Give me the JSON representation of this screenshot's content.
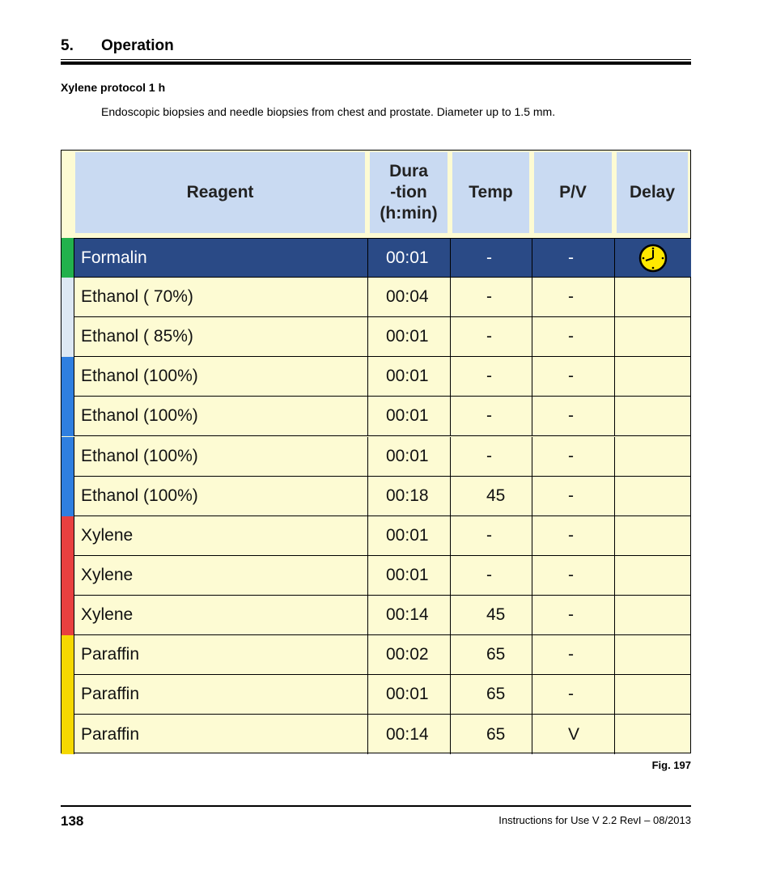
{
  "header": {
    "section_number": "5.",
    "section_title": "Operation"
  },
  "heading": "Xylene protocol 1 h",
  "description": "Endoscopic biopsies and needle biopsies from chest and prostate. Diameter up to 1.5 mm.",
  "table": {
    "columns": [
      "Reagent",
      "Dura\n-tion\n(h:min)",
      "Temp",
      "P/V",
      "Delay"
    ],
    "rows": [
      [
        "Formalin",
        "00:01",
        "-",
        "-"
      ],
      [
        "Ethanol ( 70%)",
        "00:04",
        "-",
        "-"
      ],
      [
        "Ethanol ( 85%)",
        "00:01",
        "-",
        "-"
      ],
      [
        "Ethanol (100%)",
        "00:01",
        "-",
        "-"
      ],
      [
        "Ethanol (100%)",
        "00:01",
        "-",
        "-"
      ],
      [
        "Ethanol (100%)",
        "00:01",
        "-",
        "-"
      ],
      [
        "Ethanol (100%)",
        "00:18",
        "45",
        "-"
      ],
      [
        "Xylene",
        "00:01",
        "-",
        "-"
      ],
      [
        "Xylene",
        "00:01",
        "-",
        "-"
      ],
      [
        "Xylene",
        "00:14",
        "45",
        "-"
      ],
      [
        "Paraffin",
        "00:02",
        "65",
        "-"
      ],
      [
        "Paraffin",
        "00:01",
        "65",
        "-"
      ],
      [
        "Paraffin",
        "00:14",
        "65",
        "V"
      ]
    ],
    "stripe_colors": [
      "#22b14c",
      "#dde8f4",
      "#dde8f4",
      "#2f7fe0",
      "#2f7fe0",
      "#2f7fe0",
      "#2f7fe0",
      "#e8403f",
      "#e8403f",
      "#e8403f",
      "#f5d800",
      "#f5d800",
      "#f5d800"
    ]
  },
  "figure_label": "Fig. 197",
  "footer": {
    "page_number": "138",
    "document": "Instructions for Use V 2.2 RevI – 08/2013"
  }
}
